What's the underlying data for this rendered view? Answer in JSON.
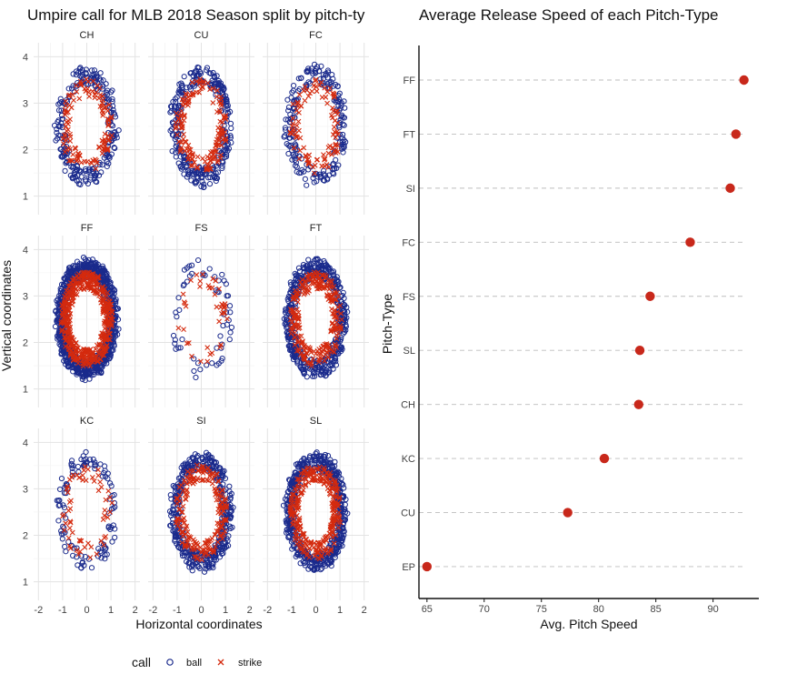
{
  "chart_data": [
    {
      "type": "scatter",
      "title": "Umpire call for MLB 2018 Season split by pitch-ty",
      "xlabel": "Horizontal coordinates",
      "ylabel": "Vertical coordinates",
      "xlim": [
        -2.2,
        2.2
      ],
      "ylim": [
        0.6,
        4.3
      ],
      "x_ticks": [
        "-2",
        "-1",
        "0",
        "1",
        "2"
      ],
      "y_ticks": [
        "1",
        "2",
        "3",
        "4"
      ],
      "facets": [
        "CH",
        "CU",
        "FC",
        "FF",
        "FS",
        "FT",
        "KC",
        "SI",
        "SL"
      ],
      "legend": {
        "title": "call",
        "position": "bottom",
        "entries": [
          {
            "label": "ball",
            "color": "#1a2a8c",
            "marker": "open-circle"
          },
          {
            "label": "strike",
            "color": "#d42a0e",
            "marker": "x"
          }
        ]
      },
      "ball_region": {
        "x": [
          -1.3,
          1.3
        ],
        "y": [
          1.2,
          3.8
        ]
      },
      "strike_region": {
        "x": [
          -1.1,
          1.1
        ],
        "y": [
          1.45,
          3.55
        ]
      },
      "grid": true
    },
    {
      "type": "scatter",
      "title": "Average Release Speed of each Pitch-Type",
      "xlabel": "Avg. Pitch Speed",
      "ylabel": "Pitch-Type",
      "xlim": [
        64.3,
        94
      ],
      "x_ticks": [
        "65",
        "70",
        "75",
        "80",
        "85",
        "90"
      ],
      "categories": [
        "FF",
        "FT",
        "SI",
        "FC",
        "FS",
        "SL",
        "CH",
        "KC",
        "CU",
        "EP"
      ],
      "values": [
        92.7,
        92.0,
        91.5,
        88.0,
        84.5,
        83.6,
        83.5,
        80.5,
        77.3,
        65.0
      ],
      "color": "#c8281b",
      "grid": "dashed"
    }
  ]
}
